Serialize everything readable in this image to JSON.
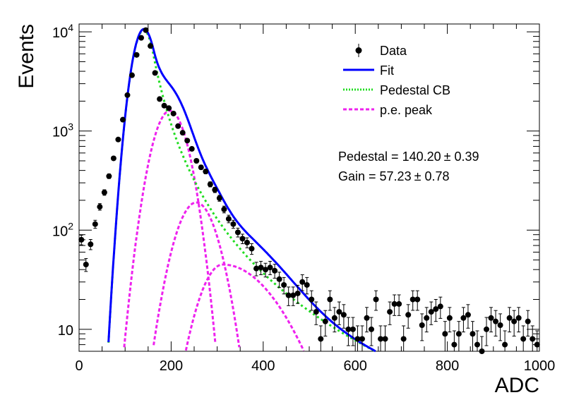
{
  "chart_data": {
    "type": "scatter",
    "xlabel": "ADC",
    "ylabel": "Events",
    "xlim": [
      0,
      1000
    ],
    "ylim": [
      6,
      12000
    ],
    "yscale": "log",
    "grid": false,
    "legend_position": "top-right",
    "x_ticks": [
      {
        "value": 0,
        "label": "0"
      },
      {
        "value": 200,
        "label": "200"
      },
      {
        "value": 400,
        "label": "400"
      },
      {
        "value": 600,
        "label": "600"
      },
      {
        "value": 800,
        "label": "800"
      },
      {
        "value": 1000,
        "label": "1000"
      }
    ],
    "y_ticks": [
      {
        "value": 10,
        "base": "10",
        "exp": ""
      },
      {
        "value": 100,
        "base": "10",
        "exp": "2"
      },
      {
        "value": 1000,
        "base": "10",
        "exp": "3"
      },
      {
        "value": 10000,
        "base": "10",
        "exp": "4"
      }
    ],
    "legend": [
      {
        "label": "Data",
        "color": "#000000",
        "style": "marker"
      },
      {
        "label": "Fit",
        "color": "#0000ff",
        "style": "solid"
      },
      {
        "label": "Pedestal CB",
        "color": "#22dd22",
        "style": "dotted"
      },
      {
        "label": "p.e. peak",
        "color": "#ee22ee",
        "style": "dashed"
      }
    ],
    "annotations": [
      {
        "text": "Pedestal = 140.20",
        "pm": "± 0.39"
      },
      {
        "text": "Gain = 57.23",
        "pm": "± 0.78"
      }
    ],
    "series": [
      {
        "name": "Data",
        "color": "#000000",
        "x": [
          5,
          15,
          25,
          35,
          45,
          55,
          65,
          75,
          85,
          95,
          105,
          115,
          125,
          135,
          145,
          155,
          165,
          175,
          185,
          195,
          205,
          215,
          225,
          235,
          245,
          255,
          265,
          275,
          285,
          295,
          305,
          315,
          325,
          335,
          345,
          355,
          365,
          375,
          385,
          395,
          405,
          415,
          425,
          435,
          445,
          455,
          465,
          475,
          485,
          495,
          505,
          515,
          525,
          535,
          545,
          555,
          565,
          575,
          585,
          595,
          605,
          615,
          625,
          635,
          645,
          655,
          665,
          675,
          685,
          695,
          705,
          715,
          725,
          735,
          745,
          755,
          765,
          775,
          785,
          795,
          805,
          815,
          825,
          835,
          845,
          855,
          865,
          875,
          885,
          895,
          905,
          915,
          925,
          935,
          945,
          955,
          965,
          975,
          985,
          995
        ],
        "y": [
          80,
          45,
          72,
          115,
          172,
          240,
          350,
          530,
          820,
          1300,
          2300,
          3650,
          5850,
          8700,
          10400,
          7200,
          3850,
          2100,
          1800,
          1700,
          1500,
          1120,
          960,
          800,
          660,
          500,
          430,
          390,
          290,
          255,
          210,
          162,
          130,
          115,
          95,
          82,
          75,
          65,
          41,
          42,
          40,
          42,
          39,
          32,
          28,
          22,
          22,
          23,
          30,
          28,
          20,
          15,
          8,
          12,
          20,
          13,
          15,
          14,
          10,
          10,
          8,
          8,
          13,
          10,
          20,
          8,
          8,
          15,
          18,
          18,
          8,
          14,
          20,
          20,
          11,
          13,
          15,
          16,
          17,
          9,
          13,
          7,
          9,
          13,
          14,
          9,
          7,
          6,
          10,
          13,
          12,
          11,
          7,
          13,
          12,
          13,
          8,
          12,
          8,
          7
        ]
      },
      {
        "name": "Fit",
        "color": "#0000ff"
      },
      {
        "name": "Pedestal CB",
        "color": "#22dd22"
      },
      {
        "name": "p.e. peak",
        "color": "#ee22ee"
      }
    ]
  }
}
